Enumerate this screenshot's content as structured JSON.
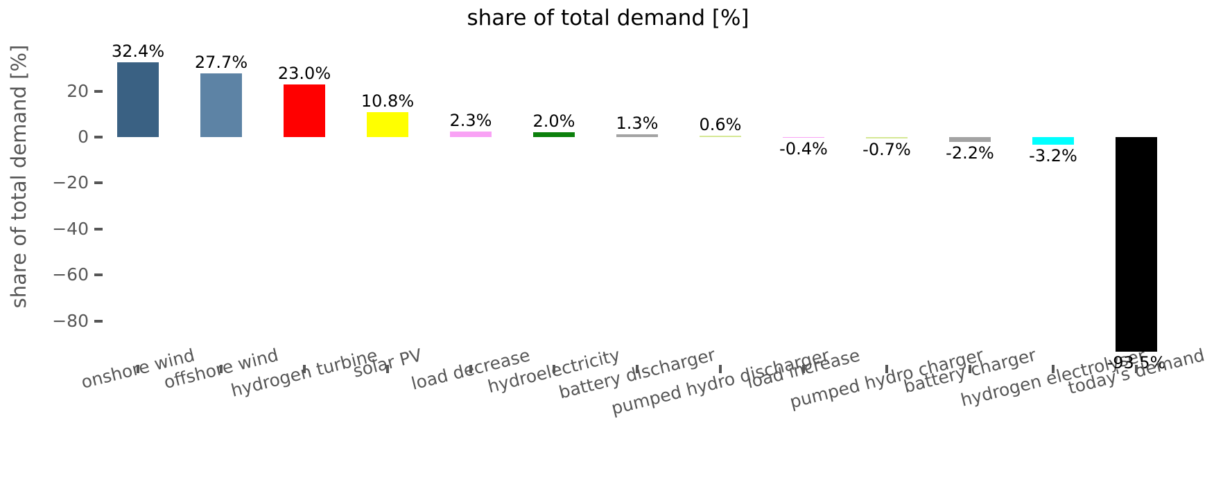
{
  "chart_data": {
    "type": "bar",
    "title": "share of total demand [%]",
    "ylabel": "share of total demand [%]",
    "grid": false,
    "legend": false,
    "ylim": [
      -100,
      40
    ],
    "ytick_values": [
      20,
      0,
      -20,
      -40,
      -60,
      -80
    ],
    "ytick_labels": [
      "20",
      "0",
      "−20",
      "−40",
      "−60",
      "−80"
    ],
    "categories": [
      "onshore wind",
      "offshore wind",
      "hydrogen turbine",
      "solar PV",
      "load decrease",
      "hydroelectricity",
      "battery discharger",
      "pumped hydro discharger",
      "load increase",
      "pumped hydro charger",
      "battery charger",
      "hydrogen electrolyser",
      "today's demand"
    ],
    "values": [
      32.4,
      27.7,
      23.0,
      10.8,
      2.3,
      2.0,
      1.3,
      0.6,
      -0.4,
      -0.7,
      -2.2,
      -3.2,
      -93.5
    ],
    "bar_labels": [
      "32.4%",
      "27.7%",
      "23.0%",
      "10.8%",
      "2.3%",
      "2.0%",
      "1.3%",
      "0.6%",
      "-0.4%",
      "-0.7%",
      "-2.2%",
      "-3.2%",
      "-93.5%"
    ],
    "colors": [
      "#3A6183",
      "#5D83A5",
      "#FF0000",
      "#FFFF00",
      "#F9A2F5",
      "#0C800C",
      "#A3A3A3",
      "#D5E894",
      "#F9A2F5",
      "#D5E894",
      "#A3A3A3",
      "#00FFFF",
      "#000000"
    ],
    "text_colors": {
      "title": "#000000",
      "tick_labels": "#565656",
      "value_labels": "#000000"
    }
  }
}
